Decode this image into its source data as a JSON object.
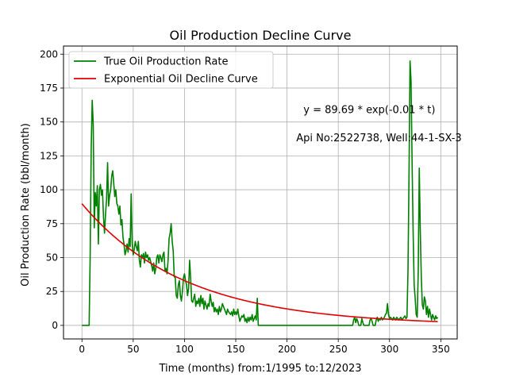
{
  "chart_data": {
    "type": "line",
    "title": "Oil Production Decline Curve",
    "xlabel": "Time (months) from:1/1995 to:12/2023",
    "ylabel": "Oil Production Rate (bbl/month)",
    "xlim": [
      -18,
      366
    ],
    "ylim": [
      -10,
      206
    ],
    "xticks": [
      0,
      50,
      100,
      150,
      200,
      250,
      300,
      350
    ],
    "yticks": [
      0,
      25,
      50,
      75,
      100,
      125,
      150,
      175,
      200
    ],
    "grid": true,
    "legend_position": "top-left",
    "annotations": [
      {
        "text": "y = 89.69 * exp(-0.01 * t)",
        "x": 216,
        "y": 159
      },
      {
        "text": "Api No:2522738, Well:44-1-SX-3",
        "x": 209,
        "y": 138
      }
    ],
    "series": [
      {
        "name": "True Oil Production Rate",
        "color": "#008000",
        "points": [
          [
            0,
            0
          ],
          [
            6,
            0
          ],
          [
            7,
            0
          ],
          [
            8,
            50
          ],
          [
            9,
            130
          ],
          [
            10,
            166
          ],
          [
            11,
            148
          ],
          [
            12,
            72
          ],
          [
            13,
            98
          ],
          [
            14,
            88
          ],
          [
            15,
            103
          ],
          [
            16,
            60
          ],
          [
            17,
            100
          ],
          [
            18,
            104
          ],
          [
            19,
            96
          ],
          [
            20,
            100
          ],
          [
            21,
            80
          ],
          [
            22,
            68
          ],
          [
            23,
            82
          ],
          [
            24,
            93
          ],
          [
            25,
            120
          ],
          [
            26,
            88
          ],
          [
            27,
            96
          ],
          [
            28,
            100
          ],
          [
            29,
            110
          ],
          [
            30,
            114
          ],
          [
            31,
            105
          ],
          [
            32,
            95
          ],
          [
            33,
            100
          ],
          [
            34,
            90
          ],
          [
            35,
            88
          ],
          [
            36,
            82
          ],
          [
            37,
            88
          ],
          [
            38,
            74
          ],
          [
            39,
            78
          ],
          [
            40,
            65
          ],
          [
            41,
            60
          ],
          [
            42,
            52
          ],
          [
            43,
            55
          ],
          [
            44,
            60
          ],
          [
            45,
            54
          ],
          [
            46,
            64
          ],
          [
            47,
            58
          ],
          [
            48,
            97
          ],
          [
            49,
            60
          ],
          [
            50,
            52
          ],
          [
            51,
            56
          ],
          [
            52,
            62
          ],
          [
            53,
            58
          ],
          [
            54,
            55
          ],
          [
            55,
            62
          ],
          [
            56,
            48
          ],
          [
            57,
            43
          ],
          [
            58,
            52
          ],
          [
            59,
            50
          ],
          [
            60,
            53
          ],
          [
            61,
            46
          ],
          [
            62,
            54
          ],
          [
            63,
            50
          ],
          [
            64,
            52
          ],
          [
            65,
            48
          ],
          [
            66,
            50
          ],
          [
            67,
            47
          ],
          [
            68,
            44
          ],
          [
            69,
            40
          ],
          [
            70,
            46
          ],
          [
            71,
            38
          ],
          [
            72,
            42
          ],
          [
            73,
            50
          ],
          [
            74,
            52
          ],
          [
            75,
            46
          ],
          [
            76,
            52
          ],
          [
            77,
            50
          ],
          [
            78,
            47
          ],
          [
            79,
            52
          ],
          [
            80,
            54
          ],
          [
            81,
            40
          ],
          [
            82,
            42
          ],
          [
            83,
            38
          ],
          [
            84,
            48
          ],
          [
            85,
            64
          ],
          [
            86,
            68
          ],
          [
            87,
            75
          ],
          [
            88,
            62
          ],
          [
            89,
            55
          ],
          [
            90,
            36
          ],
          [
            91,
            35
          ],
          [
            92,
            22
          ],
          [
            93,
            20
          ],
          [
            94,
            30
          ],
          [
            95,
            33
          ],
          [
            96,
            22
          ],
          [
            97,
            18
          ],
          [
            98,
            25
          ],
          [
            99,
            35
          ],
          [
            100,
            38
          ],
          [
            101,
            33
          ],
          [
            102,
            30
          ],
          [
            103,
            22
          ],
          [
            104,
            27
          ],
          [
            105,
            48
          ],
          [
            106,
            35
          ],
          [
            107,
            18
          ],
          [
            108,
            17
          ],
          [
            109,
            20
          ],
          [
            110,
            23
          ],
          [
            111,
            14
          ],
          [
            112,
            18
          ],
          [
            113,
            16
          ],
          [
            114,
            20
          ],
          [
            115,
            14
          ],
          [
            116,
            22
          ],
          [
            117,
            16
          ],
          [
            118,
            20
          ],
          [
            119,
            12
          ],
          [
            120,
            18
          ],
          [
            121,
            15
          ],
          [
            122,
            12
          ],
          [
            123,
            16
          ],
          [
            124,
            14
          ],
          [
            125,
            23
          ],
          [
            126,
            18
          ],
          [
            127,
            14
          ],
          [
            128,
            17
          ],
          [
            129,
            10
          ],
          [
            130,
            13
          ],
          [
            131,
            10
          ],
          [
            132,
            12
          ],
          [
            133,
            8
          ],
          [
            134,
            14
          ],
          [
            135,
            10
          ],
          [
            136,
            12
          ],
          [
            137,
            16
          ],
          [
            138,
            14
          ],
          [
            139,
            12
          ],
          [
            140,
            10
          ],
          [
            141,
            8
          ],
          [
            142,
            12
          ],
          [
            143,
            10
          ],
          [
            144,
            9
          ],
          [
            145,
            8
          ],
          [
            146,
            10
          ],
          [
            147,
            7
          ],
          [
            148,
            12
          ],
          [
            149,
            8
          ],
          [
            150,
            10
          ],
          [
            151,
            8
          ],
          [
            152,
            12
          ],
          [
            153,
            7
          ],
          [
            154,
            3
          ],
          [
            155,
            5
          ],
          [
            156,
            7
          ],
          [
            157,
            6
          ],
          [
            158,
            8
          ],
          [
            159,
            3
          ],
          [
            160,
            5
          ],
          [
            161,
            2
          ],
          [
            162,
            6
          ],
          [
            163,
            3
          ],
          [
            164,
            6
          ],
          [
            165,
            4
          ],
          [
            166,
            8
          ],
          [
            167,
            3
          ],
          [
            168,
            5
          ],
          [
            169,
            7
          ],
          [
            170,
            4
          ],
          [
            171,
            20
          ],
          [
            172,
            0
          ],
          [
            175,
            0
          ],
          [
            200,
            0
          ],
          [
            230,
            0
          ],
          [
            264,
            0
          ],
          [
            265,
            4
          ],
          [
            266,
            6
          ],
          [
            267,
            2
          ],
          [
            268,
            5
          ],
          [
            269,
            3
          ],
          [
            270,
            0
          ],
          [
            272,
            0
          ],
          [
            273,
            5
          ],
          [
            274,
            2
          ],
          [
            275,
            0
          ],
          [
            280,
            0
          ],
          [
            281,
            4
          ],
          [
            282,
            5
          ],
          [
            283,
            3
          ],
          [
            284,
            0
          ],
          [
            286,
            0
          ],
          [
            287,
            4
          ],
          [
            288,
            6
          ],
          [
            289,
            3
          ],
          [
            290,
            5
          ],
          [
            291,
            4
          ],
          [
            292,
            6
          ],
          [
            293,
            4
          ],
          [
            294,
            5
          ],
          [
            295,
            6
          ],
          [
            296,
            8
          ],
          [
            297,
            9
          ],
          [
            298,
            16
          ],
          [
            299,
            8
          ],
          [
            300,
            5
          ],
          [
            301,
            6
          ],
          [
            302,
            5
          ],
          [
            303,
            4
          ],
          [
            304,
            6
          ],
          [
            305,
            5
          ],
          [
            306,
            4
          ],
          [
            307,
            6
          ],
          [
            308,
            5
          ],
          [
            309,
            4
          ],
          [
            310,
            5
          ],
          [
            311,
            6
          ],
          [
            312,
            4
          ],
          [
            313,
            5
          ],
          [
            314,
            6
          ],
          [
            315,
            7
          ],
          [
            316,
            5
          ],
          [
            317,
            6
          ],
          [
            318,
            40
          ],
          [
            319,
            110
          ],
          [
            320,
            195
          ],
          [
            321,
            180
          ],
          [
            322,
            120
          ],
          [
            323,
            70
          ],
          [
            324,
            30
          ],
          [
            325,
            20
          ],
          [
            326,
            8
          ],
          [
            327,
            6
          ],
          [
            328,
            40
          ],
          [
            329,
            116
          ],
          [
            330,
            70
          ],
          [
            331,
            35
          ],
          [
            332,
            15
          ],
          [
            333,
            12
          ],
          [
            334,
            21
          ],
          [
            335,
            18
          ],
          [
            336,
            8
          ],
          [
            337,
            14
          ],
          [
            338,
            6
          ],
          [
            339,
            12
          ],
          [
            340,
            8
          ],
          [
            341,
            4
          ],
          [
            342,
            8
          ],
          [
            343,
            6
          ],
          [
            344,
            4
          ],
          [
            345,
            7
          ],
          [
            346,
            5
          ],
          [
            347,
            6
          ]
        ]
      },
      {
        "name": "Exponential Oil Decline Curve",
        "color": "#e00000",
        "equation": {
          "a": 89.69,
          "b": -0.01,
          "t_start": 0,
          "t_end": 347
        }
      }
    ]
  }
}
